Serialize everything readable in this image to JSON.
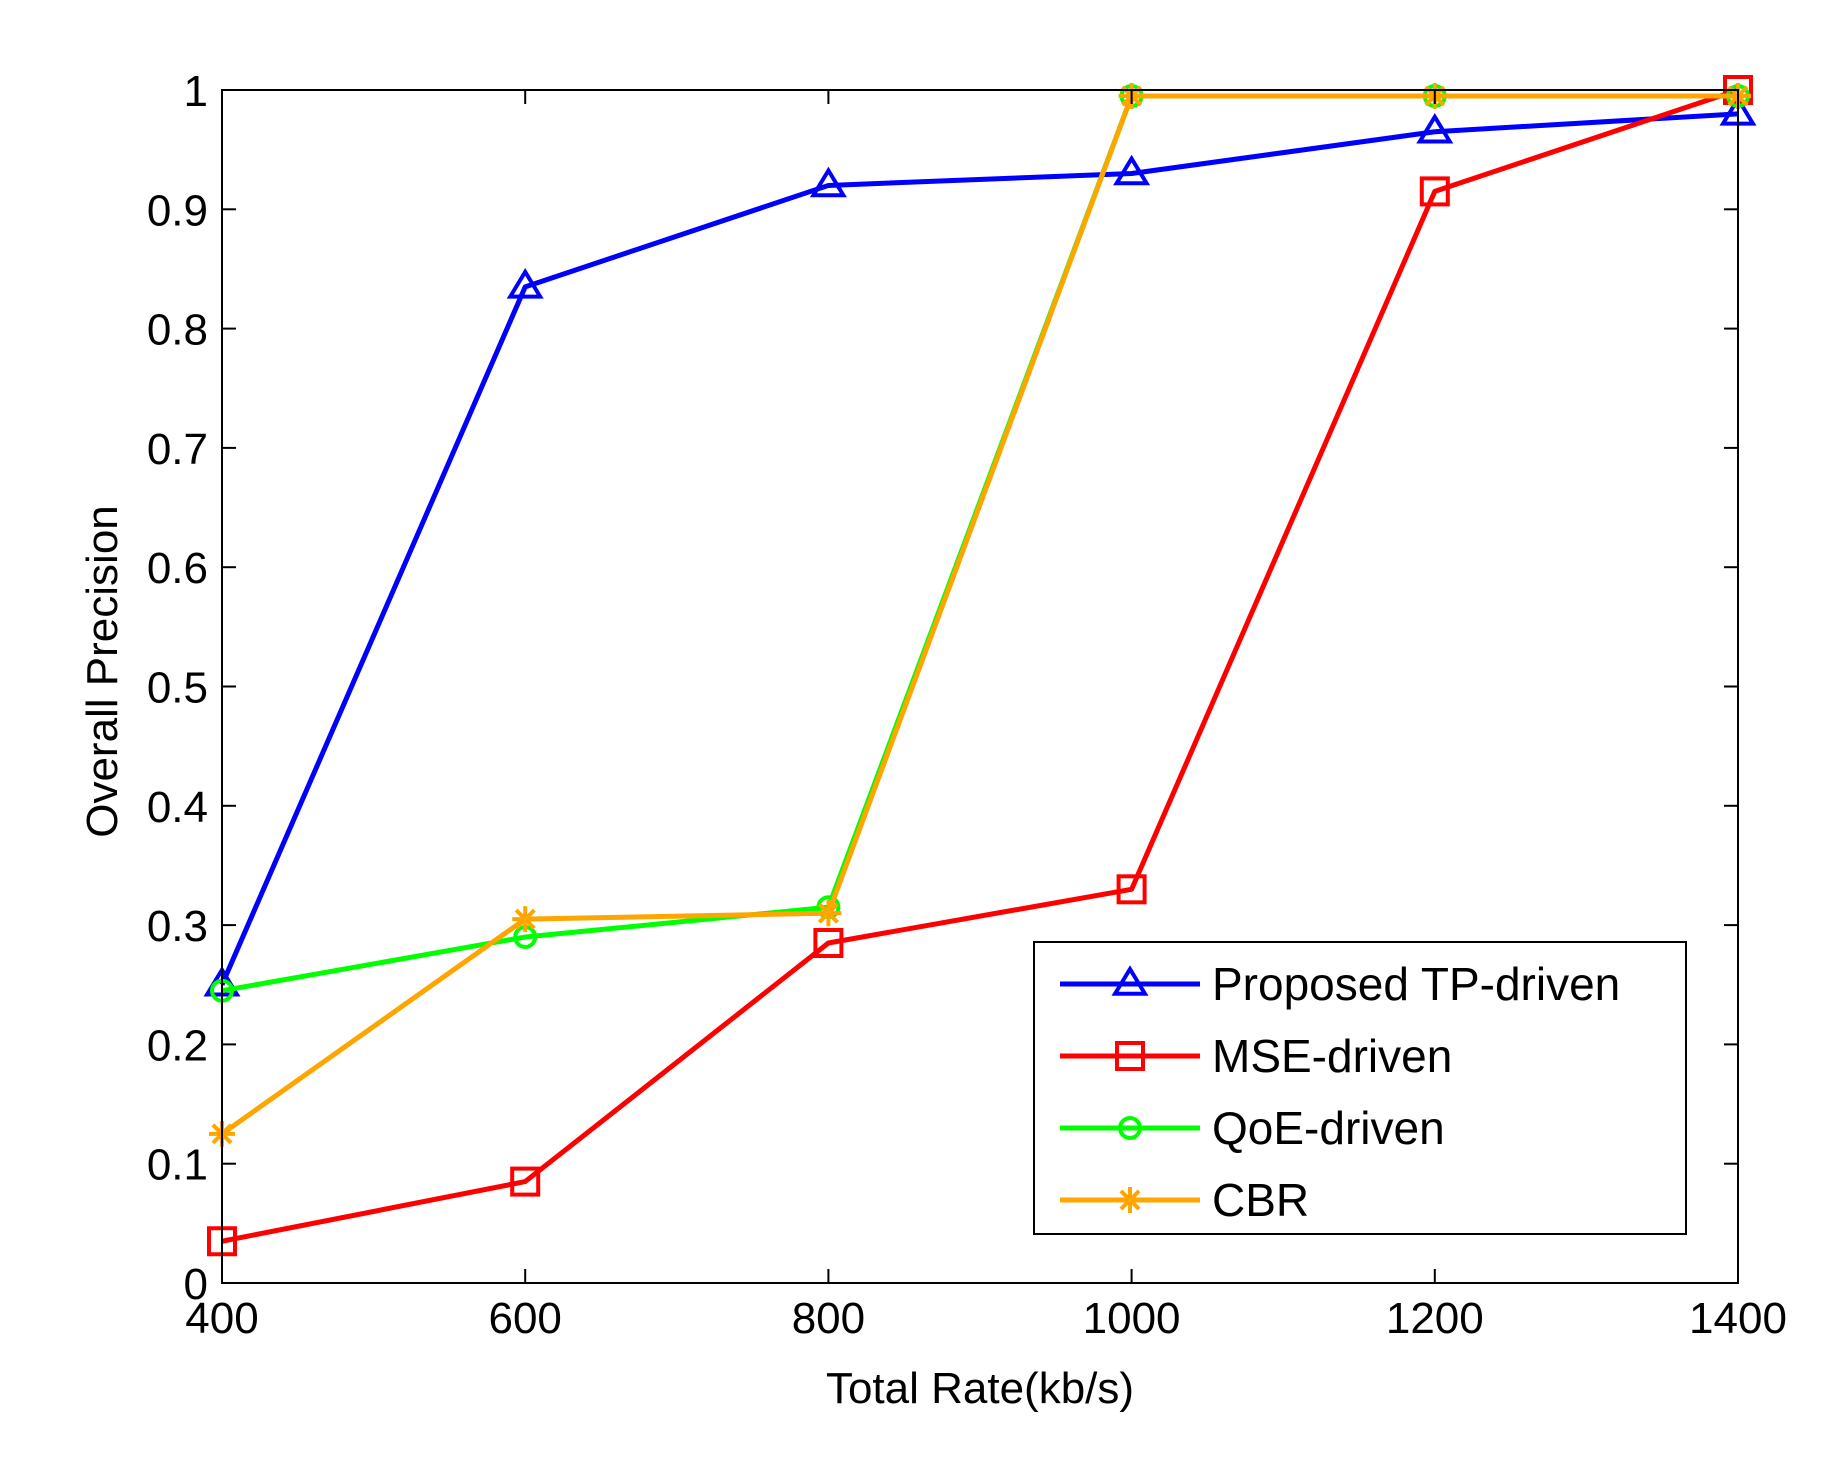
{
  "chart_data": {
    "type": "line",
    "title": "",
    "xlabel": "Total Rate(kb/s)",
    "ylabel": "Overall Precision",
    "xlim": [
      400,
      1400
    ],
    "ylim": [
      0,
      1
    ],
    "xticks": [
      400,
      600,
      800,
      1000,
      1200,
      1400
    ],
    "yticks": [
      0,
      0.1,
      0.2,
      0.3,
      0.4,
      0.5,
      0.6,
      0.7,
      0.8,
      0.9,
      1
    ],
    "xtick_labels": [
      "400",
      "600",
      "800",
      "1000",
      "1200",
      "1400"
    ],
    "ytick_labels": [
      "0",
      "0.1",
      "0.2",
      "0.3",
      "0.4",
      "0.5",
      "0.6",
      "0.7",
      "0.8",
      "0.9",
      "1"
    ],
    "grid": false,
    "legend_position": "bottom-right",
    "x": [
      400,
      600,
      800,
      1000,
      1200,
      1400
    ],
    "series": [
      {
        "name": "Proposed TP-driven",
        "color": "#0000ff",
        "marker": "triangle",
        "values": [
          0.25,
          0.835,
          0.92,
          0.93,
          0.965,
          0.98
        ]
      },
      {
        "name": "MSE-driven",
        "color": "#ff0000",
        "marker": "square",
        "values": [
          0.035,
          0.085,
          0.285,
          0.33,
          0.915,
          1.0
        ]
      },
      {
        "name": "QoE-driven",
        "color": "#00ff00",
        "marker": "circle",
        "values": [
          0.245,
          0.29,
          0.315,
          0.995,
          0.995,
          0.995
        ]
      },
      {
        "name": "CBR",
        "color": "#ffa500",
        "marker": "star",
        "values": [
          0.125,
          0.305,
          0.31,
          0.995,
          0.995,
          0.995
        ]
      }
    ]
  }
}
